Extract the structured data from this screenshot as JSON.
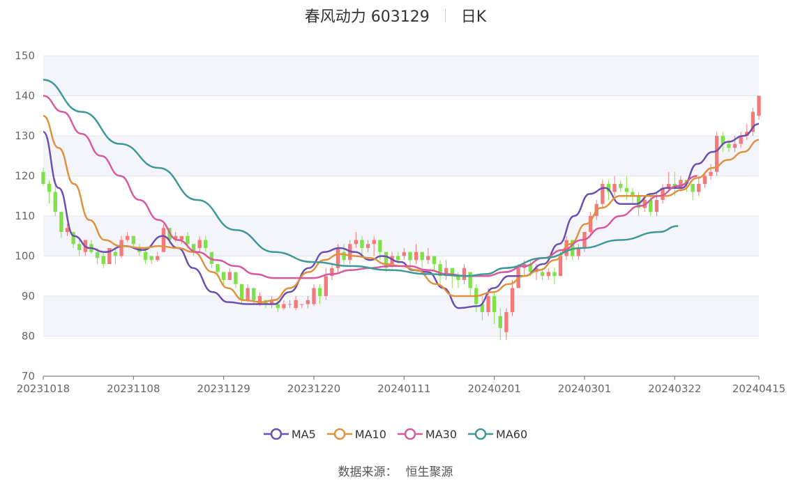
{
  "header": {
    "stock": "春风动力 603129",
    "period": "日K"
  },
  "source": {
    "label": "数据来源：",
    "value": "恒生聚源"
  },
  "colors": {
    "up": "#f47a7a",
    "down": "#7fe04a",
    "ma5": "#6b4fae",
    "ma10": "#e0913f",
    "ma30": "#d8589e",
    "ma60": "#3f9896",
    "band": "#f4f4fb",
    "grid": "#e3e6ef"
  },
  "chart_data": {
    "type": "candlestick",
    "title": "春风动力 603129 日K",
    "ylim": [
      70,
      150
    ],
    "y_ticks": [
      70,
      80,
      90,
      100,
      110,
      120,
      130,
      140,
      150
    ],
    "x_ticks": [
      "20231018",
      "20231108",
      "20231129",
      "20231220",
      "20240111",
      "20240201",
      "20240301",
      "20240322",
      "20240415"
    ],
    "x_tick_index": [
      0,
      15,
      30,
      45,
      60,
      75,
      90,
      105,
      119
    ],
    "legend": [
      "MA5",
      "MA10",
      "MA30",
      "MA60"
    ],
    "candles": [
      [
        121,
        118,
        122,
        117.5
      ],
      [
        118,
        116,
        119,
        113
      ],
      [
        116,
        111,
        119,
        110
      ],
      [
        111,
        106,
        111,
        104.5
      ],
      [
        106,
        107,
        108,
        105
      ],
      [
        106,
        103,
        106,
        102
      ],
      [
        103,
        101.5,
        104,
        100
      ],
      [
        101,
        104,
        104,
        100
      ],
      [
        103,
        101,
        104,
        100.5
      ],
      [
        101,
        99.5,
        102,
        98
      ],
      [
        100,
        98,
        101,
        97
      ],
      [
        98,
        102,
        102,
        98
      ],
      [
        101,
        100,
        102,
        98
      ],
      [
        100,
        104,
        105,
        99.5
      ],
      [
        104,
        105,
        106,
        103.5
      ],
      [
        105,
        103,
        105,
        102
      ],
      [
        102,
        101,
        103,
        100
      ],
      [
        101,
        99,
        102,
        98
      ],
      [
        100,
        99,
        100,
        98
      ],
      [
        99,
        100,
        101,
        98.5
      ],
      [
        101,
        107,
        108,
        101
      ],
      [
        107,
        104,
        107,
        103
      ],
      [
        104,
        105,
        106,
        103.5
      ],
      [
        104,
        105,
        105,
        103
      ],
      [
        105,
        103,
        106,
        102
      ],
      [
        103,
        101,
        103,
        100
      ],
      [
        102,
        104,
        105,
        101
      ],
      [
        104,
        102,
        105,
        101
      ],
      [
        101,
        98,
        101,
        97
      ],
      [
        98,
        96,
        98,
        95
      ],
      [
        96,
        94,
        96,
        92.5
      ],
      [
        94,
        96,
        97,
        94
      ],
      [
        96,
        93,
        96,
        92
      ],
      [
        93,
        89,
        93,
        88
      ],
      [
        89,
        92,
        93,
        88.5
      ],
      [
        92,
        89,
        92,
        88
      ],
      [
        88,
        90,
        91,
        87.5
      ],
      [
        89,
        88,
        89,
        87
      ],
      [
        88,
        89,
        90,
        87
      ],
      [
        88,
        87,
        89,
        86
      ],
      [
        87,
        88,
        89,
        86.5
      ],
      [
        88,
        88,
        89,
        87
      ],
      [
        87,
        89,
        90,
        86.5
      ],
      [
        88,
        88,
        88,
        87
      ],
      [
        88,
        89,
        90,
        87
      ],
      [
        88,
        92,
        93,
        87.5
      ],
      [
        92,
        90,
        93,
        88
      ],
      [
        90,
        95,
        97,
        89
      ],
      [
        95,
        97,
        98,
        94
      ],
      [
        97,
        102,
        103,
        96
      ],
      [
        101,
        99,
        103,
        98
      ],
      [
        99,
        103,
        104,
        98
      ],
      [
        103,
        104,
        106,
        102
      ],
      [
        104,
        102,
        105,
        100
      ],
      [
        102,
        103,
        104,
        101
      ],
      [
        103,
        104,
        105,
        100
      ],
      [
        104,
        101,
        104,
        99
      ],
      [
        101,
        97,
        101,
        96
      ],
      [
        98,
        100,
        101,
        97
      ],
      [
        100,
        99,
        101,
        98
      ],
      [
        100,
        101,
        102,
        99
      ],
      [
        101,
        99,
        101,
        97
      ],
      [
        99,
        101,
        103,
        98
      ],
      [
        101,
        99,
        101,
        97
      ],
      [
        99,
        100,
        102,
        98
      ],
      [
        100,
        98,
        100,
        96
      ],
      [
        98,
        95,
        99,
        93
      ],
      [
        95,
        97,
        99,
        94
      ],
      [
        97,
        95,
        97,
        92
      ],
      [
        95,
        94,
        96,
        92
      ],
      [
        94,
        97,
        98,
        93
      ],
      [
        96,
        92,
        96,
        90
      ],
      [
        92,
        88,
        93,
        86
      ],
      [
        88,
        86,
        90,
        84
      ],
      [
        86,
        90,
        92,
        85
      ],
      [
        90,
        86,
        91,
        83
      ],
      [
        85,
        82,
        87,
        79
      ],
      [
        81,
        86,
        87,
        79
      ],
      [
        86,
        92,
        94,
        85
      ],
      [
        92,
        97,
        98,
        92
      ],
      [
        97,
        98,
        99,
        95
      ],
      [
        98,
        96,
        99,
        95
      ],
      [
        96,
        97,
        98,
        94
      ],
      [
        96,
        95,
        97,
        94
      ],
      [
        95,
        96,
        97,
        94
      ],
      [
        96,
        95,
        97,
        93
      ],
      [
        95,
        100,
        101,
        95
      ],
      [
        100,
        104,
        105,
        99
      ],
      [
        104,
        100,
        104,
        99
      ],
      [
        100,
        102,
        103,
        99
      ],
      [
        102,
        106,
        106,
        101
      ],
      [
        106,
        110,
        111,
        105
      ],
      [
        110,
        113,
        114,
        109
      ],
      [
        113,
        118,
        119,
        112
      ],
      [
        118,
        116,
        119,
        114
      ],
      [
        116,
        118,
        120,
        115
      ],
      [
        118,
        117,
        119,
        116
      ],
      [
        117,
        116,
        120,
        114
      ],
      [
        116,
        115,
        117,
        113
      ],
      [
        115,
        112,
        116,
        110
      ],
      [
        112,
        114,
        115,
        111
      ],
      [
        114,
        111,
        115,
        110
      ],
      [
        111,
        114,
        116,
        110
      ],
      [
        114,
        117,
        118,
        113
      ],
      [
        117,
        118,
        121,
        116
      ],
      [
        118,
        117,
        121,
        115
      ],
      [
        117,
        119,
        120,
        116
      ],
      [
        119,
        118,
        119,
        116
      ],
      [
        118,
        116,
        118,
        114
      ],
      [
        116,
        118,
        120,
        115
      ],
      [
        118,
        120,
        121,
        117
      ],
      [
        120,
        121,
        123,
        119
      ],
      [
        121,
        130,
        131,
        120
      ],
      [
        130,
        128,
        131,
        126
      ],
      [
        128,
        127,
        129,
        126
      ],
      [
        127,
        128,
        130,
        126
      ],
      [
        128,
        130,
        131,
        127
      ],
      [
        130,
        131,
        133,
        129
      ],
      [
        131,
        136,
        137,
        130
      ],
      [
        135,
        140,
        140,
        134
      ]
    ],
    "ma_series": [
      {
        "name": "MA5",
        "points": [
          [
            0,
            131
          ],
          [
            4,
            117
          ],
          [
            8,
            105
          ],
          [
            12,
            102
          ],
          [
            16,
            101
          ],
          [
            21,
            102.5
          ],
          [
            26,
            101.5
          ],
          [
            31,
            105
          ],
          [
            35,
            102
          ],
          [
            39,
            97
          ],
          [
            44,
            91
          ],
          [
            48,
            88.5
          ],
          [
            53,
            88
          ],
          [
            57,
            88
          ],
          [
            60,
            88
          ],
          [
            64,
            91
          ],
          [
            69,
            97
          ],
          [
            73,
            101
          ],
          [
            77,
            102
          ],
          [
            81,
            101
          ],
          [
            85,
            99
          ],
          [
            88,
            100
          ],
          [
            93,
            98.5
          ],
          [
            96,
            96.5
          ],
          [
            100,
            96
          ],
          [
            104,
            92
          ],
          [
            108,
            87
          ],
          [
            113,
            87.5
          ],
          [
            117,
            92
          ],
          [
            121,
            95
          ],
          [
            125,
            95
          ],
          [
            130,
            98
          ],
          [
            134,
            103
          ],
          [
            138,
            110
          ],
          [
            142,
            115.5
          ],
          [
            146,
            117
          ],
          [
            150,
            113
          ],
          [
            154,
            113
          ],
          [
            158,
            115.5
          ],
          [
            162,
            117
          ],
          [
            166,
            117
          ],
          [
            170,
            123
          ],
          [
            174,
            126
          ],
          [
            178,
            128.5
          ],
          [
            182,
            130
          ],
          [
            186,
            133
          ]
        ]
      },
      {
        "name": "MA10",
        "points": [
          [
            0,
            135
          ],
          [
            4,
            127
          ],
          [
            8,
            118
          ],
          [
            12,
            109
          ],
          [
            16,
            104
          ],
          [
            20,
            102.5
          ],
          [
            26,
            102
          ],
          [
            30,
            102.5
          ],
          [
            35,
            102
          ],
          [
            39,
            101
          ],
          [
            44,
            96
          ],
          [
            48,
            92
          ],
          [
            52,
            89
          ],
          [
            57,
            88.5
          ],
          [
            60,
            89
          ],
          [
            64,
            92
          ],
          [
            69,
            96
          ],
          [
            73,
            99
          ],
          [
            77,
            100.5
          ],
          [
            81,
            100
          ],
          [
            85,
            99.5
          ],
          [
            89,
            98
          ],
          [
            93,
            97.5
          ],
          [
            97,
            96.5
          ],
          [
            102,
            93
          ],
          [
            107,
            90
          ],
          [
            112,
            90
          ],
          [
            117,
            91
          ],
          [
            121,
            93
          ],
          [
            125,
            95
          ],
          [
            129,
            96.5
          ],
          [
            133,
            99
          ],
          [
            137,
            103
          ],
          [
            141,
            108
          ],
          [
            145,
            112
          ],
          [
            150,
            115
          ],
          [
            154,
            115
          ],
          [
            158,
            115
          ],
          [
            162,
            115
          ],
          [
            166,
            116.5
          ],
          [
            170,
            119.5
          ],
          [
            174,
            122
          ],
          [
            178,
            124
          ],
          [
            182,
            126
          ],
          [
            186,
            129
          ]
        ]
      },
      {
        "name": "MA30",
        "points": [
          [
            0,
            140
          ],
          [
            5,
            136
          ],
          [
            10,
            130.5
          ],
          [
            15,
            125
          ],
          [
            20,
            120
          ],
          [
            25,
            114
          ],
          [
            30,
            109
          ],
          [
            35,
            104
          ],
          [
            40,
            101
          ],
          [
            45,
            99
          ],
          [
            50,
            97.5
          ],
          [
            55,
            95.5
          ],
          [
            60,
            94.5
          ],
          [
            65,
            94.5
          ],
          [
            70,
            94.5
          ],
          [
            75,
            95.5
          ],
          [
            80,
            96.5
          ],
          [
            85,
            97
          ],
          [
            90,
            97.5
          ],
          [
            95,
            97.5
          ],
          [
            100,
            96.5
          ],
          [
            105,
            95.5
          ],
          [
            110,
            95
          ],
          [
            115,
            95
          ],
          [
            120,
            96
          ],
          [
            125,
            97.5
          ],
          [
            130,
            99.5
          ],
          [
            135,
            101.5
          ],
          [
            140,
            104
          ],
          [
            145,
            107
          ],
          [
            150,
            110
          ],
          [
            155,
            112.5
          ],
          [
            160,
            115
          ],
          [
            165,
            117.5
          ],
          [
            170,
            120
          ]
        ]
      },
      {
        "name": "MA60",
        "points": [
          [
            0,
            144
          ],
          [
            10,
            136
          ],
          [
            20,
            128
          ],
          [
            30,
            122
          ],
          [
            40,
            114
          ],
          [
            50,
            106.5
          ],
          [
            60,
            101
          ],
          [
            70,
            98.5
          ],
          [
            80,
            97.5
          ],
          [
            90,
            96.5
          ],
          [
            100,
            95.5
          ],
          [
            110,
            95
          ],
          [
            115,
            95.5
          ],
          [
            120,
            97
          ],
          [
            130,
            99.5
          ],
          [
            140,
            102
          ],
          [
            150,
            104
          ],
          [
            160,
            106
          ],
          [
            165,
            107.5
          ]
        ]
      }
    ]
  }
}
